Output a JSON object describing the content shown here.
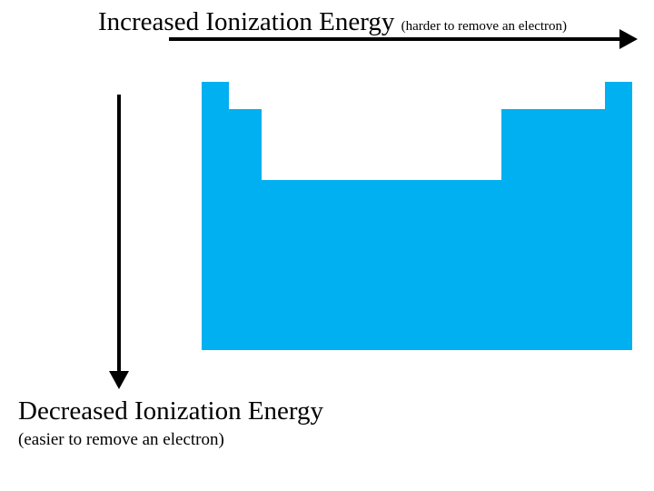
{
  "top_label": {
    "main": "Increased Ionization Energy",
    "note": "(harder to remove an electron)"
  },
  "bottom_label": {
    "main": "Decreased Ionization Energy",
    "note": "(easier to remove an electron)"
  },
  "colors": {
    "table_fill": "#00b0f0",
    "arrow": "#000000",
    "text": "#000000"
  }
}
